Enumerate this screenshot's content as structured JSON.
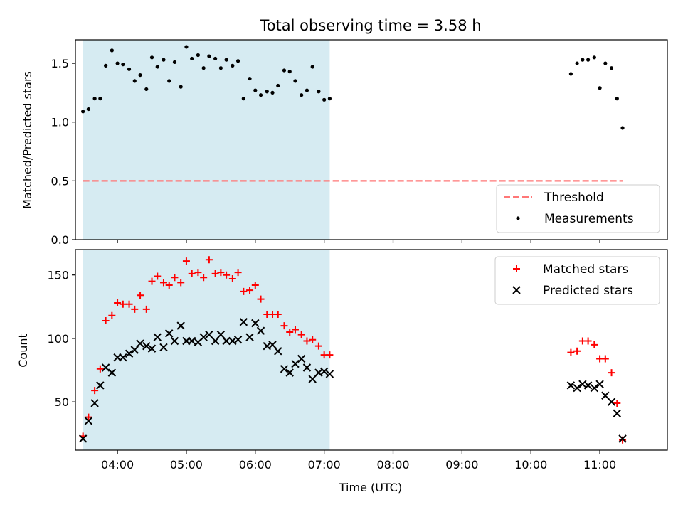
{
  "chart_data": [
    {
      "type": "scatter",
      "title": "Total observing time = 3.58 h",
      "xlabel": "",
      "ylabel": "Matched/Predicted stars",
      "ylim": [
        0,
        1.7
      ],
      "yticks": [
        0.0,
        0.5,
        1.0,
        1.5
      ],
      "ytick_labels": [
        "0.0",
        "0.5",
        "1.0",
        "1.5"
      ],
      "xlim": [
        3.39,
        11.98
      ],
      "grid": false,
      "legend_position": "lower-right",
      "highlight": {
        "x_start": 3.5,
        "x_end": 7.08,
        "color": "#add8e6"
      },
      "threshold": {
        "name": "Threshold",
        "value": 0.5,
        "x_start": 3.5,
        "x_end": 11.33,
        "color": "#ff7777"
      },
      "series": [
        {
          "name": "Measurements",
          "color": "#000000",
          "marker": "dot",
          "x": [
            3.5,
            3.58,
            3.67,
            3.75,
            3.83,
            3.92,
            4.0,
            4.08,
            4.17,
            4.25,
            4.33,
            4.42,
            4.5,
            4.58,
            4.67,
            4.75,
            4.83,
            4.92,
            5.0,
            5.08,
            5.17,
            5.25,
            5.33,
            5.42,
            5.5,
            5.58,
            5.67,
            5.75,
            5.83,
            5.92,
            6.0,
            6.08,
            6.17,
            6.25,
            6.33,
            6.42,
            6.5,
            6.58,
            6.67,
            6.75,
            6.83,
            6.92,
            7.0,
            7.08,
            10.58,
            10.67,
            10.75,
            10.83,
            10.92,
            11.0,
            11.08,
            11.17,
            11.25,
            11.33
          ],
          "y": [
            1.09,
            1.11,
            1.2,
            1.2,
            1.48,
            1.61,
            1.5,
            1.49,
            1.45,
            1.35,
            1.4,
            1.28,
            1.55,
            1.47,
            1.53,
            1.35,
            1.51,
            1.3,
            1.64,
            1.54,
            1.57,
            1.46,
            1.56,
            1.54,
            1.46,
            1.53,
            1.48,
            1.52,
            1.2,
            1.37,
            1.27,
            1.23,
            1.26,
            1.25,
            1.31,
            1.44,
            1.43,
            1.35,
            1.23,
            1.27,
            1.47,
            1.26,
            1.19,
            1.2,
            1.41,
            1.5,
            1.53,
            1.53,
            1.55,
            1.29,
            1.5,
            1.46,
            1.2,
            0.95
          ]
        }
      ]
    },
    {
      "type": "scatter",
      "title": "",
      "xlabel": "Time (UTC)",
      "ylabel": "Count",
      "ylim": [
        12,
        170
      ],
      "yticks": [
        50,
        100,
        150
      ],
      "ytick_labels": [
        "50",
        "100",
        "150"
      ],
      "xlim": [
        3.39,
        11.98
      ],
      "xticks": [
        4,
        5,
        6,
        7,
        8,
        9,
        10,
        11
      ],
      "xtick_labels": [
        "04:00",
        "05:00",
        "06:00",
        "07:00",
        "08:00",
        "09:00",
        "10:00",
        "11:00"
      ],
      "grid": false,
      "legend_position": "upper-right",
      "highlight": {
        "x_start": 3.5,
        "x_end": 7.08,
        "color": "#add8e6"
      },
      "series": [
        {
          "name": "Matched stars",
          "color": "#ff0000",
          "marker": "plus",
          "x": [
            3.5,
            3.58,
            3.67,
            3.75,
            3.83,
            3.92,
            4.0,
            4.08,
            4.17,
            4.25,
            4.33,
            4.42,
            4.5,
            4.58,
            4.67,
            4.75,
            4.83,
            4.92,
            5.0,
            5.08,
            5.17,
            5.25,
            5.33,
            5.42,
            5.5,
            5.58,
            5.67,
            5.75,
            5.83,
            5.92,
            6.0,
            6.08,
            6.17,
            6.25,
            6.33,
            6.42,
            6.5,
            6.58,
            6.67,
            6.75,
            6.83,
            6.92,
            7.0,
            7.08,
            10.58,
            10.67,
            10.75,
            10.83,
            10.92,
            11.0,
            11.08,
            11.17,
            11.25,
            11.33
          ],
          "y": [
            23,
            38,
            59,
            76,
            114,
            118,
            128,
            127,
            127,
            123,
            134,
            123,
            145,
            149,
            144,
            142,
            148,
            144,
            161,
            151,
            152,
            148,
            162,
            151,
            152,
            150,
            147,
            152,
            137,
            138,
            142,
            131,
            119,
            119,
            119,
            110,
            105,
            107,
            103,
            98,
            99,
            94,
            87,
            87,
            89,
            90,
            98,
            98,
            95,
            84,
            84,
            73,
            49,
            20
          ]
        },
        {
          "name": "Predicted stars",
          "color": "#000000",
          "marker": "x",
          "x": [
            3.5,
            3.58,
            3.67,
            3.75,
            3.83,
            3.92,
            4.0,
            4.08,
            4.17,
            4.25,
            4.33,
            4.42,
            4.5,
            4.58,
            4.67,
            4.75,
            4.83,
            4.92,
            5.0,
            5.08,
            5.17,
            5.25,
            5.33,
            5.42,
            5.5,
            5.58,
            5.67,
            5.75,
            5.83,
            5.92,
            6.0,
            6.08,
            6.17,
            6.25,
            6.33,
            6.42,
            6.5,
            6.58,
            6.67,
            6.75,
            6.83,
            6.92,
            7.0,
            7.08,
            10.58,
            10.67,
            10.75,
            10.83,
            10.92,
            11.0,
            11.08,
            11.17,
            11.25,
            11.33
          ],
          "y": [
            21,
            35,
            49,
            63,
            77,
            73,
            85,
            85,
            88,
            91,
            96,
            94,
            92,
            101,
            93,
            104,
            98,
            110,
            98,
            98,
            97,
            101,
            103,
            98,
            103,
            98,
            98,
            99,
            113,
            101,
            112,
            106,
            94,
            95,
            90,
            76,
            73,
            80,
            84,
            77,
            68,
            73,
            74,
            72,
            63,
            61,
            64,
            63,
            61,
            64,
            55,
            50,
            41,
            21
          ]
        }
      ]
    }
  ]
}
